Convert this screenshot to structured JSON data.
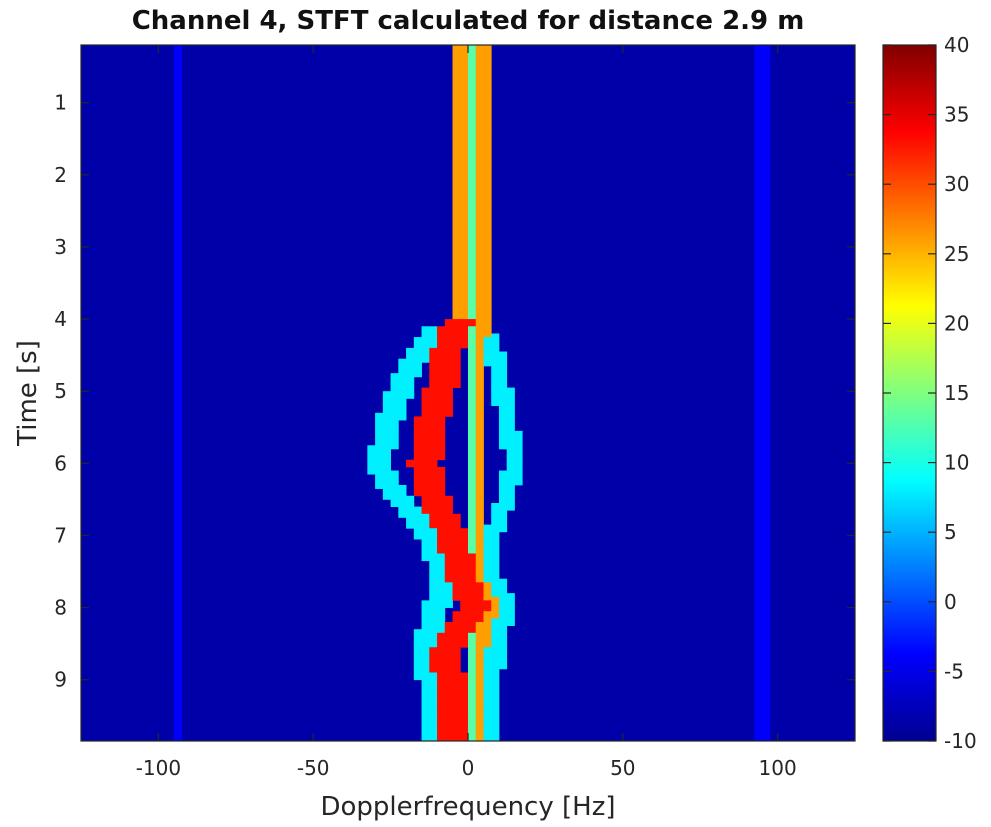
{
  "chart_data": {
    "type": "heatmap",
    "title": "Channel 4, STFT calculated for distance 2.9 m",
    "xlabel": "Dopplerfrequency [Hz]",
    "ylabel": "Time [s]",
    "xlim": [
      -125,
      125
    ],
    "ylim": [
      0.2,
      9.85
    ],
    "y_direction": "reverse",
    "x_ticks": [
      -100,
      -50,
      0,
      50,
      100
    ],
    "x_tick_labels": [
      "-100",
      "-50",
      "0",
      "50",
      "100"
    ],
    "y_ticks": [
      1,
      2,
      3,
      4,
      5,
      6,
      7,
      8,
      9
    ],
    "y_tick_labels": [
      "1",
      "2",
      "3",
      "4",
      "5",
      "6",
      "7",
      "8",
      "9"
    ],
    "colormap": "jet",
    "clim": [
      -10,
      40
    ],
    "colorbar_ticks": [
      -10,
      -5,
      0,
      5,
      10,
      15,
      20,
      25,
      30,
      35,
      40
    ],
    "colorbar_tick_labels": [
      "-10",
      "-5",
      "0",
      "5",
      "10",
      "15",
      "20",
      "25",
      "30",
      "35",
      "40"
    ],
    "background_level": -8,
    "frequency_step_hz": 2.5,
    "time_step_s": 0.05,
    "traces": [
      {
        "name": "center-band-left",
        "level": 26,
        "width_hz": 2.5,
        "points": [
          [
            0.2,
            -3.0
          ],
          [
            4.0,
            -3.0
          ],
          [
            4.4,
            -5.0
          ],
          [
            5.0,
            -8.0
          ],
          [
            5.5,
            -12.0
          ],
          [
            6.0,
            -15.0
          ],
          [
            6.5,
            -12.0
          ],
          [
            7.0,
            -5.0
          ],
          [
            7.5,
            -3.0
          ],
          [
            8.0,
            2.0
          ],
          [
            8.3,
            -2.0
          ],
          [
            8.6,
            -6.0
          ],
          [
            9.0,
            -5.0
          ],
          [
            9.85,
            -5.0
          ]
        ]
      },
      {
        "name": "center-band-right",
        "level": 26,
        "width_hz": 2.5,
        "points": [
          [
            0.2,
            4.0
          ],
          [
            4.0,
            4.0
          ],
          [
            5.0,
            3.0
          ],
          [
            6.0,
            2.0
          ],
          [
            7.0,
            2.0
          ],
          [
            7.6,
            3.0
          ],
          [
            8.0,
            8.0
          ],
          [
            8.4,
            4.0
          ],
          [
            9.0,
            3.0
          ],
          [
            9.85,
            3.0
          ]
        ]
      },
      {
        "name": "center-gap",
        "level": 13,
        "width_hz": 1.5,
        "points": [
          [
            0.2,
            0.5
          ],
          [
            9.85,
            0.5
          ]
        ]
      },
      {
        "name": "motion-core",
        "level": 33,
        "width_hz": 5.0,
        "points": [
          [
            4.0,
            -3.0
          ],
          [
            4.5,
            -7.0
          ],
          [
            5.0,
            -9.0
          ],
          [
            5.5,
            -12.0
          ],
          [
            6.0,
            -14.0
          ],
          [
            6.5,
            -11.0
          ],
          [
            7.0,
            -5.0
          ],
          [
            7.6,
            -2.0
          ],
          [
            8.0,
            2.0
          ],
          [
            8.3,
            -3.0
          ],
          [
            8.6,
            -7.0
          ],
          [
            9.0,
            -6.0
          ],
          [
            9.85,
            -5.0
          ]
        ]
      },
      {
        "name": "motion-halo-left",
        "level": 8,
        "width_hz": 4.0,
        "points": [
          [
            4.1,
            -10.0
          ],
          [
            4.6,
            -18.0
          ],
          [
            5.2,
            -24.0
          ],
          [
            5.7,
            -27.0
          ],
          [
            6.0,
            -29.0
          ],
          [
            6.4,
            -24.0
          ],
          [
            6.8,
            -16.0
          ],
          [
            7.2,
            -10.0
          ],
          [
            7.8,
            -9.0
          ],
          [
            8.4,
            -13.0
          ],
          [
            8.7,
            -14.0
          ],
          [
            9.2,
            -11.0
          ],
          [
            9.85,
            -11.0
          ]
        ]
      },
      {
        "name": "motion-halo-right",
        "level": 8,
        "width_hz": 3.0,
        "points": [
          [
            4.2,
            7.0
          ],
          [
            5.0,
            11.0
          ],
          [
            5.5,
            13.0
          ],
          [
            6.0,
            15.0
          ],
          [
            6.5,
            12.0
          ],
          [
            7.0,
            8.0
          ],
          [
            7.5,
            7.0
          ],
          [
            8.0,
            13.0
          ],
          [
            8.4,
            9.0
          ],
          [
            9.0,
            8.0
          ],
          [
            9.85,
            8.0
          ]
        ]
      },
      {
        "name": "side-line-left",
        "level": -4,
        "width_hz": 1.5,
        "points": [
          [
            0.2,
            -93.0
          ],
          [
            9.85,
            -93.0
          ]
        ]
      },
      {
        "name": "side-line-right",
        "level": -4,
        "width_hz": 1.5,
        "points": [
          [
            0.2,
            95.0
          ],
          [
            9.85,
            95.0
          ]
        ]
      }
    ]
  }
}
